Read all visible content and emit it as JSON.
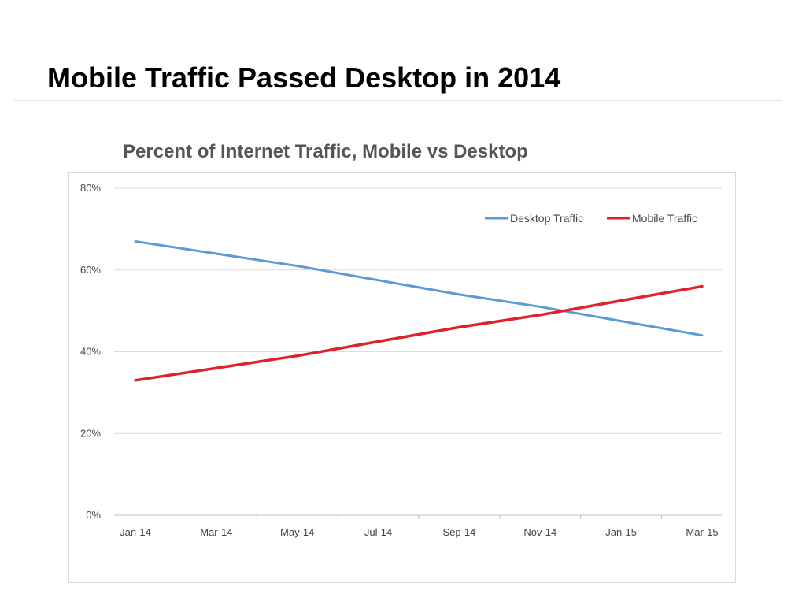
{
  "slide": {
    "title": "Mobile Traffic Passed Desktop in 2014"
  },
  "chart_data": {
    "type": "line",
    "title": "Percent of Internet Traffic, Mobile vs Desktop",
    "xlabel": "",
    "ylabel": "",
    "categories": [
      "Jan-14",
      "Mar-14",
      "May-14",
      "Jul-14",
      "Sep-14",
      "Nov-14",
      "Jan-15",
      "Mar-15"
    ],
    "series": [
      {
        "name": "Desktop Traffic",
        "color": "#5b9bd5",
        "values": [
          67,
          64,
          61,
          57.5,
          54,
          51,
          47.5,
          44
        ]
      },
      {
        "name": "Mobile Traffic",
        "color": "#e0202a",
        "values": [
          33,
          36,
          39,
          42.5,
          46,
          49,
          52.5,
          56
        ]
      }
    ],
    "ylim": [
      0,
      80
    ],
    "yticks": [
      0,
      20,
      40,
      60,
      80
    ],
    "ytick_labels": [
      "0%",
      "20%",
      "40%",
      "60%",
      "80%"
    ],
    "grid": true,
    "legend_position": "top-right"
  }
}
